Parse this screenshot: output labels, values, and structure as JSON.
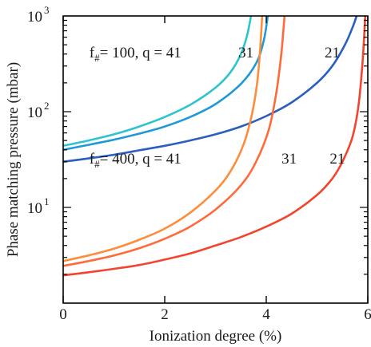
{
  "chart_data": {
    "type": "line",
    "xlabel": "Ionization degree (%)",
    "ylabel": "Phase matching pressure (mbar)",
    "xlim": [
      0,
      6
    ],
    "ylim": [
      1,
      1000
    ],
    "yscale": "log",
    "grid": false,
    "x_ticks": [
      {
        "value": 0,
        "label": "0"
      },
      {
        "value": 2,
        "label": "2"
      },
      {
        "value": 4,
        "label": "4"
      },
      {
        "value": 6,
        "label": "6"
      }
    ],
    "y_ticks": [
      {
        "value": 10,
        "base": "10",
        "exp": "1"
      },
      {
        "value": 100,
        "base": "10",
        "exp": "2"
      },
      {
        "value": 1000,
        "base": "10",
        "exp": "3"
      }
    ],
    "series": [
      {
        "group": "f#=100",
        "q": 41,
        "color": "#2ec4cf",
        "x": [
          0,
          0.5,
          1,
          1.5,
          2,
          2.5,
          3,
          3.3,
          3.5,
          3.62,
          3.7
        ],
        "y": [
          44,
          50,
          58,
          70,
          88,
          118,
          178,
          260,
          400,
          620,
          1000
        ]
      },
      {
        "group": "f#=100",
        "q": 31,
        "color": "#1f9ad6",
        "x": [
          0,
          0.5,
          1,
          1.5,
          2,
          2.5,
          3,
          3.5,
          3.8,
          3.95,
          4.03
        ],
        "y": [
          40,
          45,
          51,
          59,
          70,
          88,
          120,
          195,
          320,
          550,
          1000
        ]
      },
      {
        "group": "f#=100",
        "q": 21,
        "color": "#2a5ec0",
        "x": [
          0,
          0.5,
          1,
          1.5,
          2,
          2.5,
          3,
          3.5,
          4,
          4.5,
          5,
          5.3,
          5.55,
          5.7,
          5.78
        ],
        "y": [
          30,
          32.5,
          35.5,
          39.5,
          44,
          50,
          58,
          70,
          90,
          125,
          200,
          300,
          500,
          760,
          1000
        ]
      },
      {
        "group": "f#=400",
        "q": 41,
        "color": "#ff8c3a",
        "x": [
          0,
          0.5,
          1,
          1.5,
          2,
          2.5,
          3,
          3.3,
          3.55,
          3.72,
          3.82,
          3.88,
          3.92
        ],
        "y": [
          2.75,
          3.15,
          3.7,
          4.6,
          6,
          8.8,
          15,
          24,
          45,
          95,
          200,
          450,
          1000
        ]
      },
      {
        "group": "f#=400",
        "q": 31,
        "color": "#ff6a3a",
        "x": [
          0,
          0.5,
          1,
          1.5,
          2,
          2.5,
          3,
          3.5,
          3.8,
          4.05,
          4.2,
          4.3,
          4.36
        ],
        "y": [
          2.45,
          2.75,
          3.15,
          3.75,
          4.7,
          6.3,
          9.5,
          17,
          30,
          65,
          160,
          420,
          1000
        ]
      },
      {
        "group": "f#=400",
        "q": 21,
        "color": "#f2442e",
        "x": [
          0,
          0.5,
          1,
          1.5,
          2,
          2.5,
          3,
          3.5,
          4,
          4.5,
          5,
          5.3,
          5.5,
          5.7,
          5.82,
          5.9,
          5.95
        ],
        "y": [
          1.95,
          2.1,
          2.28,
          2.5,
          2.85,
          3.3,
          4,
          4.9,
          6.3,
          8.6,
          13.5,
          20,
          30,
          55,
          120,
          350,
          1000
        ]
      }
    ],
    "annotations": [
      {
        "text": "21",
        "x": 5.3,
        "y": 420
      },
      {
        "text": "31",
        "x": 3.6,
        "y": 420
      },
      {
        "text": "21",
        "x": 5.4,
        "y": 33
      },
      {
        "text": "31",
        "x": 4.45,
        "y": 33
      }
    ],
    "annotation_groups": [
      {
        "prefix": "f",
        "sub": "#",
        "rest": "= 100, q = 41",
        "x": 0.8,
        "y": 420
      },
      {
        "prefix": "f",
        "sub": "#",
        "rest": "= 400, q = 41",
        "x": 0.8,
        "y": 33
      }
    ]
  }
}
